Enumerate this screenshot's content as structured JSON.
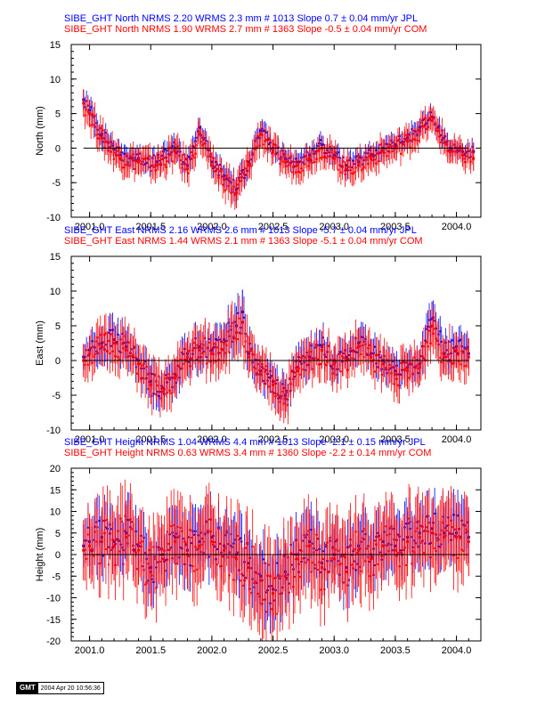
{
  "colors": {
    "jpl": "#0000ff",
    "com": "#ff0000",
    "axis": "#000000"
  },
  "footer": {
    "logo": "GMT",
    "timestamp": "2004 Apr 20 10:56:36"
  },
  "chart_data": [
    {
      "type": "scatter",
      "component": "north",
      "header_lines": [
        {
          "text": "SIBE_GHT North NRMS 2.20 WRMS  2.3 mm # 1013 Slope    0.7 ±  0.04 mm/yr JPL",
          "color": "#0000ff"
        },
        {
          "text": "SIBE_GHT North NRMS 1.90 WRMS  2.7 mm # 1363 Slope   -0.5 ±  0.04 mm/yr COM",
          "color": "#ff0000"
        }
      ],
      "ylabel": "North (mm)",
      "xlim": [
        2000.85,
        2004.2
      ],
      "ylim": [
        -10,
        15
      ],
      "x_ticks": [
        2001.0,
        2001.5,
        2002.0,
        2002.5,
        2003.0,
        2003.5,
        2004.0
      ],
      "x_tick_labels": [
        "2001.0",
        "2001.5",
        "2002.0",
        "2002.5",
        "2003.0",
        "2003.5",
        "2004.0"
      ],
      "y_ticks": [
        -10,
        -5,
        0,
        5,
        10,
        15
      ],
      "y_tick_labels": [
        "-10",
        "-5",
        "0",
        "5",
        "10",
        "15"
      ],
      "zero_line": true,
      "series": [
        {
          "id": "jpl",
          "color": "#0000ff",
          "x": [
            2000.95,
            2001.0,
            2001.1,
            2001.25,
            2001.4,
            2001.55,
            2001.7,
            2001.8,
            2001.9,
            2002.0,
            2002.1,
            2002.2,
            2002.3,
            2002.4,
            2002.5,
            2002.6,
            2002.7,
            2002.8,
            2002.9,
            2003.0,
            2003.1,
            2003.2,
            2003.3,
            2003.4,
            2003.5,
            2003.6,
            2003.7,
            2003.8,
            2003.85,
            2003.95,
            2004.05,
            2004.14
          ],
          "y": [
            7,
            5.5,
            2,
            -1,
            -1.5,
            -2,
            0,
            -2.5,
            3,
            -2,
            -4,
            -6,
            -2,
            2.5,
            0,
            -1.5,
            -2,
            -1,
            0.5,
            -1,
            -2.5,
            -2,
            -1,
            0,
            0.5,
            1.5,
            3,
            4.5,
            3,
            0,
            -0.5,
            -0.5
          ],
          "err": [
            1.5,
            1.5,
            1.4,
            1.3,
            1.4,
            1.4,
            1.4,
            1.6,
            1.4,
            1.4,
            1.6,
            1.8,
            1.5,
            1.4,
            1.3,
            1.3,
            1.3,
            1.3,
            1.3,
            1.3,
            1.3,
            1.3,
            1.3,
            1.3,
            1.3,
            1.3,
            1.3,
            1.3,
            1.3,
            1.2,
            1.2,
            1.3
          ]
        },
        {
          "id": "com",
          "color": "#ff0000",
          "x": [
            2000.95,
            2001.0,
            2001.1,
            2001.25,
            2001.4,
            2001.55,
            2001.7,
            2001.8,
            2001.9,
            2002.0,
            2002.1,
            2002.2,
            2002.3,
            2002.4,
            2002.5,
            2002.6,
            2002.7,
            2002.8,
            2002.9,
            2003.0,
            2003.1,
            2003.2,
            2003.3,
            2003.4,
            2003.5,
            2003.6,
            2003.7,
            2003.8,
            2003.85,
            2003.95,
            2004.05,
            2004.14
          ],
          "y": [
            6.5,
            5,
            1.5,
            -1.5,
            -2,
            -2.5,
            -0.5,
            -3,
            2,
            -2.5,
            -4.5,
            -6.5,
            -2.5,
            2,
            -0.5,
            -2,
            -2.5,
            -1.5,
            0,
            -1.5,
            -3,
            -2.5,
            -1.5,
            -0.5,
            0,
            1,
            2.5,
            4,
            2.5,
            -0.5,
            -1,
            -1.5
          ],
          "err": [
            2,
            2,
            1.9,
            1.8,
            1.9,
            1.9,
            1.9,
            2,
            1.9,
            1.9,
            2,
            2.2,
            2,
            1.9,
            1.8,
            1.8,
            1.8,
            1.8,
            1.8,
            1.8,
            1.8,
            1.8,
            1.8,
            1.8,
            1.8,
            1.8,
            1.8,
            1.8,
            1.8,
            1.7,
            1.7,
            1.8
          ]
        }
      ]
    },
    {
      "type": "scatter",
      "component": "east",
      "header_lines": [
        {
          "text": "SIBE_GHT East NRMS 2.16 WRMS  2.6 mm # 1013 Slope   -5.7 ±  0.04 mm/yr JPL",
          "color": "#0000ff"
        },
        {
          "text": "SIBE_GHT East NRMS 1.44 WRMS  2.1 mm # 1363 Slope   -5.1 ±  0.04 mm/yr COM",
          "color": "#ff0000"
        }
      ],
      "ylabel": "East (mm)",
      "xlim": [
        2000.85,
        2004.2
      ],
      "ylim": [
        -10,
        15
      ],
      "x_ticks": [
        2001.0,
        2001.5,
        2002.0,
        2002.5,
        2003.0,
        2003.5,
        2004.0
      ],
      "x_tick_labels": [
        "2001.0",
        "2001.5",
        "2002.0",
        "2002.5",
        "2003.0",
        "2003.5",
        "2004.0"
      ],
      "y_ticks": [
        -10,
        -5,
        0,
        5,
        10,
        15
      ],
      "y_tick_labels": [
        "-10",
        "-5",
        "0",
        "5",
        "10",
        "15"
      ],
      "zero_line": true,
      "series": [
        {
          "id": "jpl",
          "color": "#0000ff",
          "x": [
            2000.95,
            2001.0,
            2001.1,
            2001.2,
            2001.3,
            2001.4,
            2001.5,
            2001.6,
            2001.7,
            2001.8,
            2001.9,
            2002.0,
            2002.1,
            2002.2,
            2002.25,
            2002.3,
            2002.4,
            2002.5,
            2002.6,
            2002.7,
            2002.8,
            2002.9,
            2003.0,
            2003.1,
            2003.2,
            2003.3,
            2003.4,
            2003.5,
            2003.6,
            2003.7,
            2003.8,
            2003.9,
            2004.0,
            2004.1
          ],
          "y": [
            0.5,
            1.5,
            2.5,
            3,
            2,
            0,
            -3,
            -4,
            -2,
            1,
            2,
            1.5,
            3,
            5,
            7,
            1,
            -1.5,
            -3,
            -5,
            -1,
            0.5,
            2,
            0,
            0.5,
            2.5,
            1,
            0,
            -1.5,
            -1,
            -0.5,
            6,
            1,
            2,
            1
          ],
          "err": [
            1.8,
            2,
            2.4,
            2.5,
            2.3,
            2.2,
            2.3,
            2.2,
            2.3,
            2.3,
            2.4,
            2.4,
            2.5,
            2.8,
            3.2,
            2.5,
            2.2,
            2.2,
            2.3,
            2.2,
            2.2,
            2.2,
            2.1,
            2.1,
            2.2,
            2.1,
            2.1,
            2.1,
            2.1,
            2.1,
            2.5,
            2.1,
            2.1,
            2.2
          ]
        },
        {
          "id": "com",
          "color": "#ff0000",
          "x": [
            2000.95,
            2001.0,
            2001.1,
            2001.2,
            2001.3,
            2001.4,
            2001.5,
            2001.6,
            2001.7,
            2001.8,
            2001.9,
            2002.0,
            2002.1,
            2002.2,
            2002.25,
            2002.3,
            2002.4,
            2002.5,
            2002.6,
            2002.7,
            2002.8,
            2002.9,
            2003.0,
            2003.1,
            2003.2,
            2003.3,
            2003.4,
            2003.5,
            2003.6,
            2003.7,
            2003.8,
            2003.9,
            2004.0,
            2004.1
          ],
          "y": [
            0,
            1,
            2,
            2.5,
            1.5,
            -0.5,
            -3.5,
            -4.5,
            -2.5,
            0.5,
            1.5,
            1,
            2.5,
            4,
            5.5,
            0.5,
            -2,
            -3.5,
            -5.5,
            -1.5,
            0,
            1.5,
            -0.5,
            0,
            2,
            0.5,
            -0.5,
            -2,
            -1.5,
            -1,
            5,
            0.5,
            1.5,
            0.5
          ],
          "err": [
            2.4,
            2.6,
            2.8,
            2.9,
            2.8,
            2.7,
            2.8,
            2.7,
            2.8,
            2.8,
            2.9,
            2.9,
            3,
            3.2,
            3.4,
            3,
            2.7,
            2.7,
            2.8,
            2.7,
            2.7,
            2.7,
            2.6,
            2.6,
            2.7,
            2.6,
            2.6,
            2.6,
            2.6,
            2.6,
            3,
            2.6,
            2.6,
            2.7
          ]
        }
      ]
    },
    {
      "type": "scatter",
      "component": "height",
      "header_lines": [
        {
          "text": "SIBE_GHT Height NRMS 1.04 WRMS  4.4 mm # 1013 Slope   -2.1 ±  0.15 mm/yr JPL",
          "color": "#0000ff"
        },
        {
          "text": "SIBE_GHT Height NRMS 0.63 WRMS  3.4 mm # 1360 Slope   -2.2 ±  0.14 mm/yr COM",
          "color": "#ff0000"
        }
      ],
      "ylabel": "Height (mm)",
      "xlim": [
        2000.85,
        2004.2
      ],
      "ylim": [
        -20,
        20
      ],
      "x_ticks": [
        2001.0,
        2001.5,
        2002.0,
        2002.5,
        2003.0,
        2003.5,
        2004.0
      ],
      "x_tick_labels": [
        "2001.0",
        "2001.5",
        "2002.0",
        "2002.5",
        "2003.0",
        "2003.5",
        "2004.0"
      ],
      "y_ticks": [
        -20,
        -15,
        -10,
        -5,
        0,
        5,
        10,
        15,
        20
      ],
      "y_tick_labels": [
        "-20",
        "-15",
        "-10",
        "-5",
        "0",
        "5",
        "10",
        "15",
        "20"
      ],
      "zero_line": true,
      "series": [
        {
          "id": "jpl",
          "color": "#0000ff",
          "x": [
            2000.95,
            2001.0,
            2001.1,
            2001.2,
            2001.3,
            2001.4,
            2001.5,
            2001.6,
            2001.7,
            2001.8,
            2001.9,
            2002.0,
            2002.1,
            2002.2,
            2002.3,
            2002.4,
            2002.5,
            2002.6,
            2002.7,
            2002.8,
            2002.9,
            2003.0,
            2003.1,
            2003.2,
            2003.3,
            2003.4,
            2003.5,
            2003.6,
            2003.7,
            2003.8,
            2003.9,
            2004.0,
            2004.1
          ],
          "y": [
            2,
            3,
            4,
            3,
            5,
            2,
            -3,
            0,
            4,
            1,
            3,
            4,
            2,
            0,
            -2,
            -5,
            -8,
            -4,
            0,
            3,
            -2,
            0,
            -3,
            2,
            0,
            3,
            2,
            4,
            5,
            6,
            5,
            5,
            4
          ],
          "err": [
            5,
            5.5,
            6,
            6,
            6.5,
            6,
            6,
            6,
            6.5,
            6,
            6.5,
            6.5,
            6,
            6.5,
            6.5,
            7,
            7,
            6.5,
            6.5,
            6.5,
            6.5,
            6,
            6.5,
            6.5,
            6,
            6,
            6,
            6,
            6,
            6,
            6,
            6,
            6
          ]
        },
        {
          "id": "com",
          "color": "#ff0000",
          "x": [
            2000.95,
            2001.0,
            2001.1,
            2001.2,
            2001.3,
            2001.4,
            2001.5,
            2001.6,
            2001.7,
            2001.8,
            2001.9,
            2002.0,
            2002.1,
            2002.2,
            2002.3,
            2002.4,
            2002.5,
            2002.6,
            2002.7,
            2002.8,
            2002.9,
            2003.0,
            2003.1,
            2003.2,
            2003.3,
            2003.4,
            2003.5,
            2003.6,
            2003.7,
            2003.8,
            2003.9,
            2004.0,
            2004.1
          ],
          "y": [
            1,
            2,
            3,
            2,
            4,
            1,
            -4,
            -1,
            3,
            0,
            2,
            3,
            1,
            -1,
            -3,
            -6,
            -9,
            -5,
            -1,
            2,
            -3,
            -1,
            -4,
            1,
            -1,
            2,
            1,
            3,
            4,
            5,
            4,
            4,
            3
          ],
          "err": [
            7,
            7.5,
            8,
            8,
            8.5,
            8,
            8,
            8,
            8.5,
            8,
            8.5,
            8.5,
            8,
            8.5,
            8.5,
            9,
            9,
            8.5,
            8.5,
            8.5,
            8.5,
            8,
            8.5,
            8.5,
            8,
            8,
            8,
            8,
            8,
            8,
            8,
            8,
            8
          ]
        }
      ]
    }
  ]
}
